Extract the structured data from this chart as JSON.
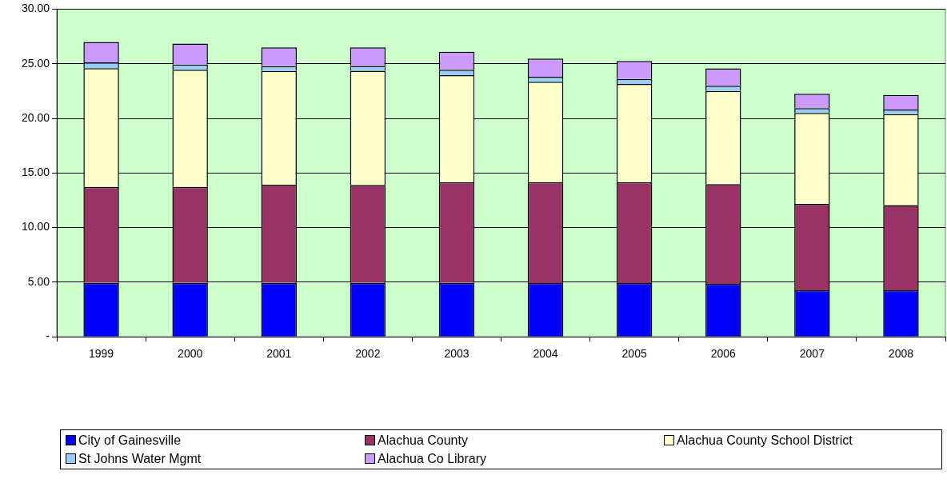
{
  "chart_data": {
    "type": "bar",
    "stacked": true,
    "categories": [
      "1999",
      "2000",
      "2001",
      "2002",
      "2003",
      "2004",
      "2005",
      "2006",
      "2007",
      "2008"
    ],
    "series": [
      {
        "name": "City of Gainesville",
        "color": "#0000ff",
        "values": [
          4.94,
          4.94,
          4.94,
          4.94,
          4.94,
          4.92,
          4.92,
          4.84,
          4.26,
          4.26
        ]
      },
      {
        "name": "Alachua County",
        "color": "#993366",
        "values": [
          8.79,
          8.79,
          8.99,
          8.97,
          9.21,
          9.25,
          9.25,
          9.13,
          7.9,
          7.8
        ]
      },
      {
        "name": "Alachua County School District",
        "color": "#ffffcc",
        "values": [
          10.86,
          10.71,
          10.4,
          10.44,
          9.81,
          9.18,
          8.98,
          8.54,
          8.34,
          8.32
        ]
      },
      {
        "name": "St Johns Water Mgmt",
        "color": "#99ccff",
        "values": [
          0.54,
          0.49,
          0.45,
          0.44,
          0.48,
          0.46,
          0.46,
          0.47,
          0.44,
          0.42
        ]
      },
      {
        "name": "Alachua Co Library",
        "color": "#cc99ff",
        "values": [
          1.87,
          1.92,
          1.71,
          1.7,
          1.66,
          1.66,
          1.65,
          1.59,
          1.32,
          1.34
        ]
      }
    ],
    "ylim": [
      0,
      30
    ],
    "yticks": [
      {
        "value": 0,
        "label": "-"
      },
      {
        "value": 5,
        "label": "5.00"
      },
      {
        "value": 10,
        "label": "10.00"
      },
      {
        "value": 15,
        "label": "15.00"
      },
      {
        "value": 20,
        "label": "20.00"
      },
      {
        "value": 25,
        "label": "25.00"
      },
      {
        "value": 30,
        "label": "30.00"
      }
    ],
    "grid": "y",
    "legend": "bottom"
  }
}
